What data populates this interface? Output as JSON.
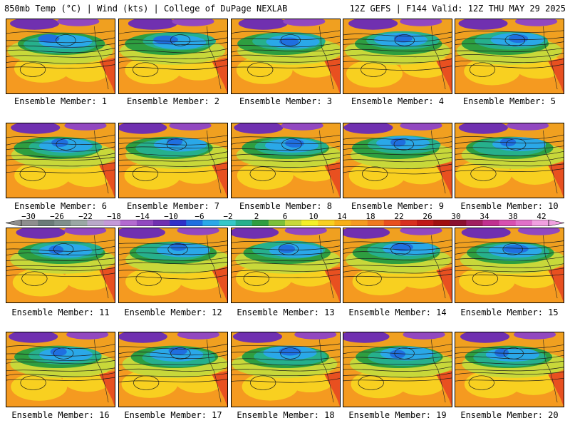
{
  "header": {
    "title": "850mb Temp (°C) | Wind (kts) | College of DuPage NEXLAB",
    "valid": "12Z GEFS | F144 Valid: 12Z THU MAY 29 2025"
  },
  "members": [
    "Ensemble Member: 1",
    "Ensemble Member: 2",
    "Ensemble Member: 3",
    "Ensemble Member: 4",
    "Ensemble Member: 5",
    "Ensemble Member: 6",
    "Ensemble Member: 7",
    "Ensemble Member: 8",
    "Ensemble Member: 9",
    "Ensemble Member: 10",
    "Ensemble Member: 11",
    "Ensemble Member: 12",
    "Ensemble Member: 13",
    "Ensemble Member: 14",
    "Ensemble Member: 15",
    "Ensemble Member: 16",
    "Ensemble Member: 17",
    "Ensemble Member: 18",
    "Ensemble Member: 19",
    "Ensemble Member: 20"
  ],
  "colorbar": {
    "labels": [
      "−30",
      "−26",
      "−22",
      "−18",
      "−14",
      "−10",
      "−6",
      "−2",
      "2",
      "6",
      "10",
      "14",
      "18",
      "22",
      "26",
      "30",
      "34",
      "38",
      "42"
    ],
    "colors": [
      "#8e8e8e",
      "#6b7b78",
      "#7f8f8c",
      "#9aa7a4",
      "#b9a9c9",
      "#c49ad8",
      "#b36ad0",
      "#9248c0",
      "#7030b0",
      "#3030c8",
      "#1f6fe0",
      "#2aa8e8",
      "#35c8c8",
      "#26b08c",
      "#2e9e40",
      "#7cc03a",
      "#c8d83a",
      "#f4f028",
      "#f8d020",
      "#f8b018",
      "#f59a20",
      "#f07a20",
      "#e85020",
      "#d83020",
      "#c01818",
      "#a01010",
      "#8a1030",
      "#a02060",
      "#c03090",
      "#d850b0",
      "#e070c8",
      "#f0a0e0"
    ]
  }
}
